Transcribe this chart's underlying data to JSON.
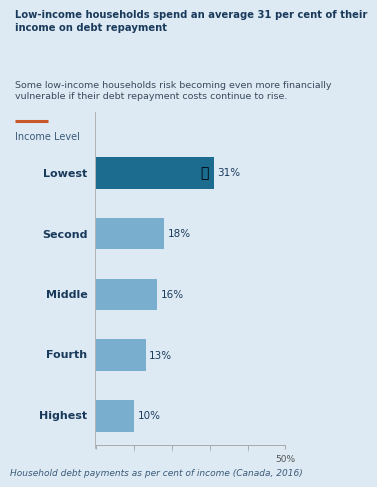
{
  "title_bold": "Low-income households spend an average 31 per cent of their\nincome on debt repayment",
  "subtitle": "Some low-income households risk becoming even more financially\nvulnerable if their debt repayment costs continue to rise.",
  "xlabel": "Household debt payments as per cent of income (Canada, 2016)",
  "ylabel": "Income Level",
  "categories": [
    "Lowest",
    "Second",
    "Middle",
    "Fourth",
    "Highest"
  ],
  "values": [
    31,
    18,
    16,
    13,
    10
  ],
  "labels": [
    "31%",
    "18%",
    "16%",
    "13%",
    "10%"
  ],
  "bar_colors": [
    "#1b6c8e",
    "#7aaece",
    "#7aaece",
    "#7aaece",
    "#7aaece"
  ],
  "background_color": "#ddeaf3",
  "xlim": [
    0,
    50
  ],
  "xtick_value": 50,
  "accent_color": "#c8572a",
  "title_fontsize": 7.2,
  "subtitle_fontsize": 6.8,
  "label_fontsize": 7.5,
  "xlabel_fontsize": 6.5,
  "ylabel_fontsize": 7,
  "category_fontsize": 8,
  "tick_fontsize": 6.5
}
